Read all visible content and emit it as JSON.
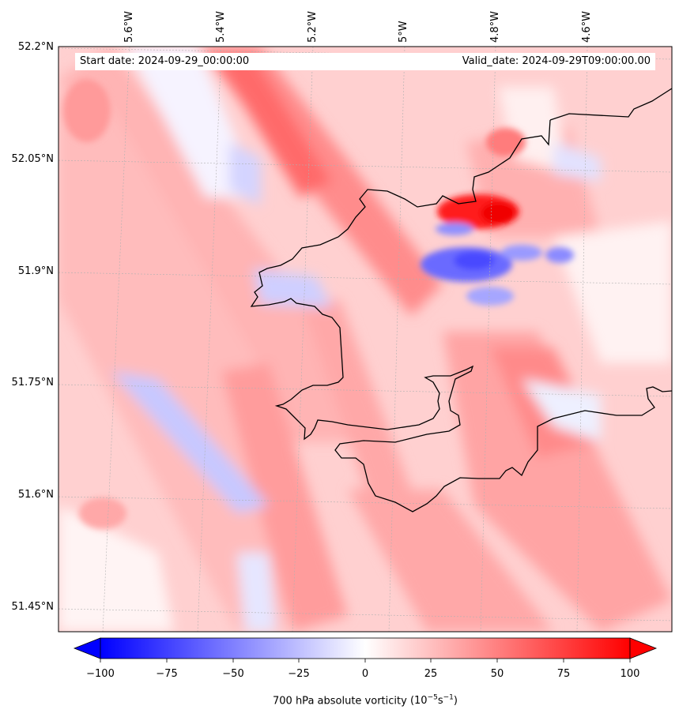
{
  "map": {
    "variable_label": "700 hPa absolute vorticity",
    "units_html": "(10<sup>−5</sup>s<sup>−1</sup>)",
    "start_date": "Start date: 2024-09-29_00:00:00",
    "valid_date": "Valid_date: 2024-09-29T09:00:00.00",
    "lon_ticks": [
      "5.6°W",
      "5.4°W",
      "5.2°W",
      "5°W",
      "4.8°W",
      "4.6°W"
    ],
    "lat_ticks": [
      "52.2°N",
      "52.05°N",
      "51.9°N",
      "51.75°N",
      "51.6°N",
      "51.45°N"
    ],
    "colorbar_ticks": [
      "−100",
      "−75",
      "−50",
      "−25",
      "0",
      "25",
      "50",
      "75",
      "100"
    ],
    "colorbar_range": [
      -100,
      100
    ],
    "colors": {
      "negative": "#0000ff",
      "neutral": "#ffffff",
      "positive": "#ff0000",
      "coastline": "#000000"
    }
  }
}
